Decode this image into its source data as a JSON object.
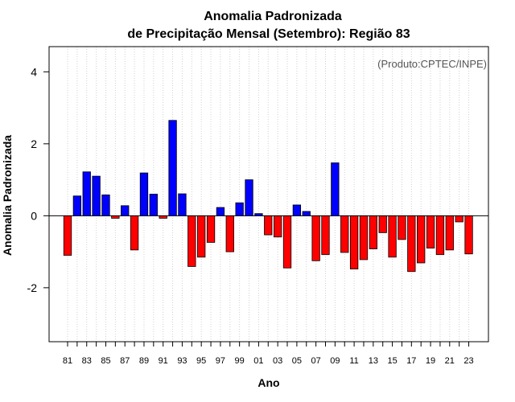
{
  "chart_data": {
    "type": "bar",
    "title": "Anomalia Padronizada",
    "subtitle": "de Precipitação Mensal (Setembro): Região 83",
    "xlabel": "Ano",
    "ylabel": "Anomalia Padronizada",
    "annotation": "(Produto:CPTEC/INPE)",
    "ylim": [
      -3.5,
      4.7
    ],
    "yticks": [
      -2,
      0,
      2,
      4
    ],
    "grid": "vertical dotted",
    "categories": [
      "81",
      "82",
      "83",
      "84",
      "85",
      "86",
      "87",
      "88",
      "89",
      "90",
      "91",
      "92",
      "93",
      "94",
      "95",
      "96",
      "97",
      "98",
      "99",
      "00",
      "01",
      "02",
      "03",
      "04",
      "05",
      "06",
      "07",
      "08",
      "09",
      "10",
      "11",
      "12",
      "13",
      "14",
      "15",
      "16",
      "17",
      "18",
      "19",
      "20",
      "21",
      "22",
      "23"
    ],
    "xtick_labels": [
      "81",
      "83",
      "85",
      "87",
      "89",
      "91",
      "93",
      "95",
      "97",
      "99",
      "01",
      "03",
      "05",
      "07",
      "09",
      "11",
      "13",
      "15",
      "17",
      "19",
      "21",
      "23"
    ],
    "values": [
      -1.1,
      0.55,
      1.22,
      1.1,
      0.58,
      -0.07,
      0.28,
      -0.95,
      1.19,
      0.6,
      -0.07,
      2.65,
      0.61,
      -1.41,
      -1.15,
      -0.74,
      0.23,
      -1.0,
      0.36,
      1.0,
      0.06,
      -0.53,
      -0.59,
      -1.45,
      0.3,
      0.12,
      -1.25,
      -1.08,
      1.47,
      -1.02,
      -1.48,
      -1.22,
      -0.92,
      -0.47,
      -1.15,
      -0.66,
      -1.55,
      -1.31,
      -0.9,
      -1.08,
      -0.95,
      -0.17,
      -1.06
    ],
    "colors": {
      "positive": "#0000ff",
      "negative": "#ff0000",
      "zero_line": "#000000",
      "grid": "#d0d0d0"
    }
  }
}
